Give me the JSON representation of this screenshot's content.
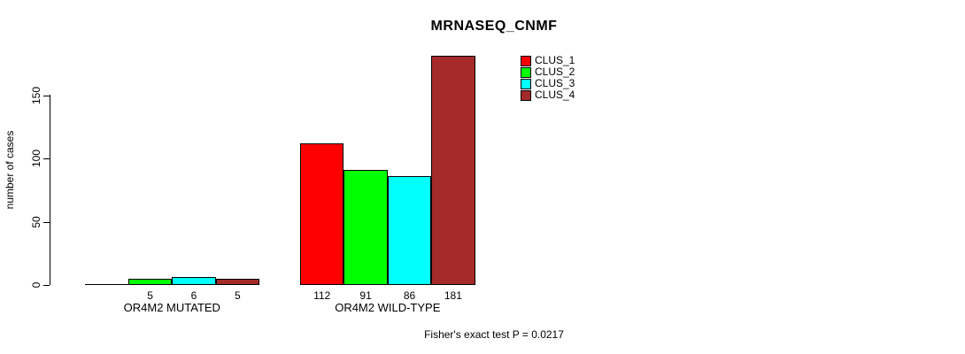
{
  "chart_data": {
    "type": "bar",
    "title": "MRNASEQ_CNMF",
    "ylabel": "number of cases",
    "xlabel": "",
    "categories": [
      "OR4M2 MUTATED",
      "OR4M2 WILD-TYPE"
    ],
    "series": [
      {
        "name": "CLUS_1",
        "color": "#FF0000",
        "values": [
          0,
          112
        ]
      },
      {
        "name": "CLUS_2",
        "color": "#00FF00",
        "values": [
          5,
          91
        ]
      },
      {
        "name": "CLUS_3",
        "color": "#00FFFF",
        "values": [
          6,
          86
        ]
      },
      {
        "name": "CLUS_4",
        "color": "#A52A2A",
        "values": [
          5,
          181
        ]
      }
    ],
    "bar_value_labels": [
      [
        "",
        "5",
        "6",
        "5"
      ],
      [
        "112",
        "91",
        "86",
        "181"
      ]
    ],
    "yticks": [
      0,
      50,
      100,
      150
    ],
    "ylim": [
      0,
      181
    ],
    "grid": false,
    "legend": {
      "position": "top-right",
      "entries": [
        "CLUS_1",
        "CLUS_2",
        "CLUS_3",
        "CLUS_4"
      ]
    },
    "annotation": "Fisher's exact test P = 0.0217"
  }
}
